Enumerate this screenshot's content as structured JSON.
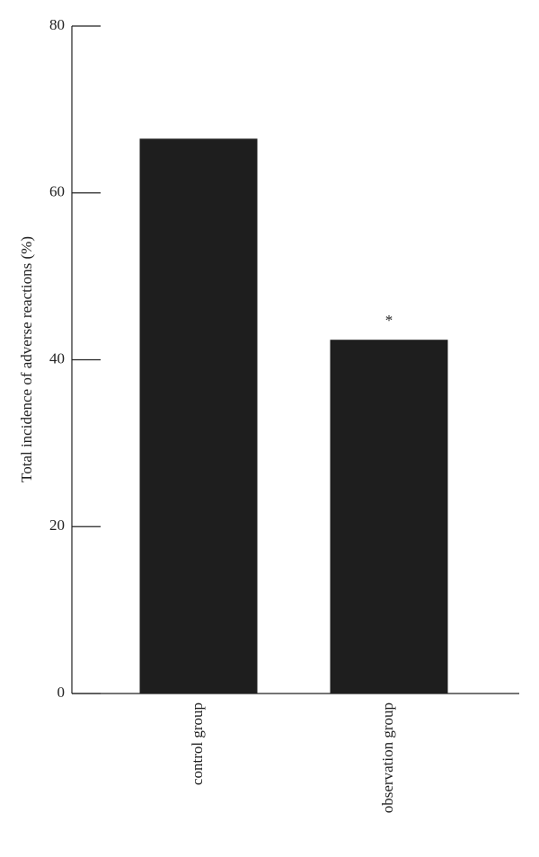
{
  "chart_data": {
    "type": "bar",
    "y_label": "Total incidence of adverse reactions (%)",
    "categories": [
      "control group",
      "observation group"
    ],
    "values": [
      66.5,
      42.4
    ],
    "color": "#1e1e1e",
    "ylim": [
      0,
      80
    ],
    "yticks": [
      0,
      20,
      40,
      60,
      80
    ],
    "annotations": [
      {
        "text": "*",
        "x": "observation group"
      }
    ]
  }
}
